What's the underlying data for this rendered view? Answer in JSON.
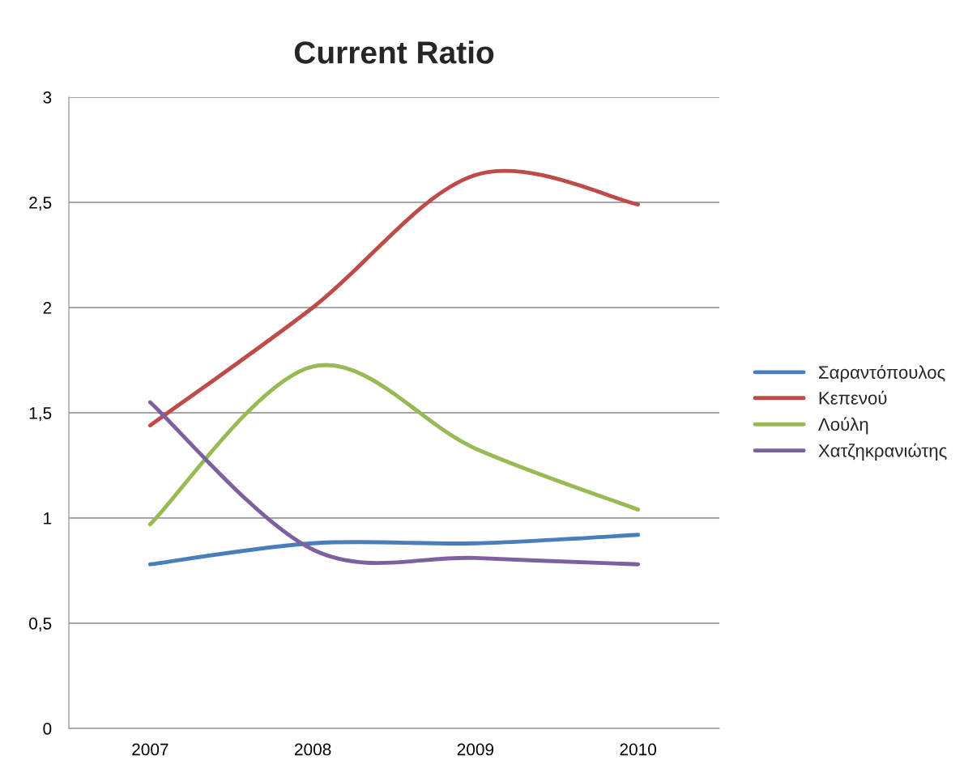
{
  "chart_data": {
    "type": "line",
    "title": "Current Ratio",
    "categories": [
      "2007",
      "2008",
      "2009",
      "2010"
    ],
    "series": [
      {
        "name": "Σαραντόπουλος",
        "color": "#4a7ebb",
        "values": [
          0.78,
          0.88,
          0.88,
          0.92
        ]
      },
      {
        "name": "Κεπενού",
        "color": "#be4b48",
        "values": [
          1.44,
          2.0,
          2.63,
          2.49
        ]
      },
      {
        "name": "Λούλη",
        "color": "#98b954",
        "values": [
          0.97,
          1.72,
          1.33,
          1.04
        ]
      },
      {
        "name": "Χατζηκρανιώτης",
        "color": "#7d60a0",
        "values": [
          1.55,
          0.85,
          0.81,
          0.78
        ]
      }
    ],
    "ylim": [
      0,
      3
    ],
    "yticks": [
      0,
      {
        "value": 0.5,
        "label": "0,5"
      },
      1,
      {
        "value": 1.5,
        "label": "1,5"
      },
      2,
      {
        "value": 2.5,
        "label": "2,5"
      },
      3
    ],
    "grid": "y",
    "legend": "right",
    "marker": "none",
    "line_style": "solid"
  }
}
